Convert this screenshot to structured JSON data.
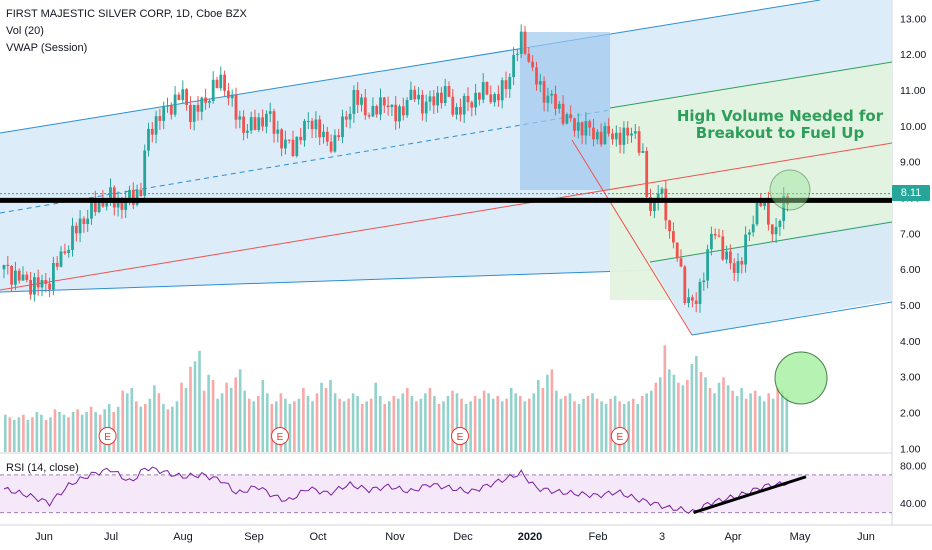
{
  "legend": {
    "symbol": "FIRST MAJESTIC SILVER CORP, 1D, Cboe BZX",
    "vol": "Vol (20)",
    "vwap": "VWAP (Session)",
    "rsi": "RSI (14, close)"
  },
  "annotation": {
    "line1": "High Volume Needed for",
    "line2": "Breakout to Fuel Up"
  },
  "last_price": "8.11",
  "colors": {
    "up": "#26a69a",
    "down": "#ef5350",
    "channel_fill": "#d6e9f8",
    "channel_line": "#2b8fd3",
    "green_fill": "#e3f3df",
    "annotation": "#2e9e5a",
    "rsi_line": "#7b1fa2",
    "rsi_band": "#f3e5f8",
    "earnings": "#e53935"
  },
  "earnings_marker": "E",
  "chart_data": {
    "type": "candlestick",
    "price_axis": {
      "ticks": [
        "13.00",
        "12.00",
        "11.00",
        "10.00",
        "9.00",
        "8.00",
        "7.00",
        "6.00",
        "5.00",
        "4.00",
        "3.00",
        "2.00",
        "1.00"
      ],
      "values": [
        13,
        12,
        11,
        10,
        9,
        8,
        7,
        6,
        5,
        4,
        3,
        2,
        1
      ],
      "range": [
        0.9,
        13.4
      ]
    },
    "time_axis": {
      "labels": [
        "Jun",
        "Jul",
        "Aug",
        "Sep",
        "Oct",
        "Nov",
        "Dec",
        "2020",
        "Feb",
        "3",
        "Apr",
        "May",
        "Jun"
      ]
    },
    "rsi_axis": {
      "ticks": [
        "80.00",
        "40.00"
      ],
      "values": [
        80,
        40
      ],
      "range": [
        20,
        90
      ]
    },
    "price_path": [
      [
        0,
        6.0
      ],
      [
        5,
        5.8
      ],
      [
        10,
        5.6
      ],
      [
        15,
        5.55
      ],
      [
        18,
        5.7
      ],
      [
        22,
        6.3
      ],
      [
        26,
        6.8
      ],
      [
        30,
        7.3
      ],
      [
        34,
        7.6
      ],
      [
        38,
        7.9
      ],
      [
        42,
        8.0
      ],
      [
        46,
        7.8
      ],
      [
        50,
        8.0
      ],
      [
        54,
        8.2
      ],
      [
        56,
        9.5
      ],
      [
        58,
        10.0
      ],
      [
        62,
        10.3
      ],
      [
        66,
        10.6
      ],
      [
        70,
        10.9
      ],
      [
        74,
        10.3
      ],
      [
        78,
        10.6
      ],
      [
        82,
        11.0
      ],
      [
        86,
        11.3
      ],
      [
        88,
        11.0
      ],
      [
        92,
        10.2
      ],
      [
        96,
        9.9
      ],
      [
        100,
        10.1
      ],
      [
        104,
        10.3
      ],
      [
        108,
        9.8
      ],
      [
        110,
        9.5
      ],
      [
        114,
        9.4
      ],
      [
        118,
        9.9
      ],
      [
        122,
        10.2
      ],
      [
        126,
        9.6
      ],
      [
        130,
        9.5
      ],
      [
        134,
        10.1
      ],
      [
        138,
        10.8
      ],
      [
        142,
        10.5
      ],
      [
        146,
        10.3
      ],
      [
        150,
        10.8
      ],
      [
        154,
        10.2
      ],
      [
        158,
        10.6
      ],
      [
        162,
        10.9
      ],
      [
        166,
        10.5
      ],
      [
        170,
        10.8
      ],
      [
        174,
        10.9
      ],
      [
        178,
        10.4
      ],
      [
        182,
        10.6
      ],
      [
        186,
        10.8
      ],
      [
        190,
        11.0
      ],
      [
        194,
        10.7
      ],
      [
        198,
        11.2
      ],
      [
        202,
        12.0
      ],
      [
        204,
        12.4
      ],
      [
        206,
        12.2
      ],
      [
        208,
        11.5
      ],
      [
        212,
        11.0
      ],
      [
        216,
        10.7
      ],
      [
        220,
        10.4
      ],
      [
        224,
        10.0
      ],
      [
        228,
        10.0
      ],
      [
        232,
        9.8
      ],
      [
        236,
        9.7
      ],
      [
        240,
        9.8
      ],
      [
        244,
        9.6
      ],
      [
        248,
        10.0
      ],
      [
        252,
        9.0
      ],
      [
        254,
        7.9
      ],
      [
        256,
        7.6
      ],
      [
        258,
        8.2
      ],
      [
        260,
        7.9
      ],
      [
        262,
        7.3
      ],
      [
        264,
        6.6
      ],
      [
        266,
        6.3
      ],
      [
        268,
        5.4
      ],
      [
        270,
        5.2
      ],
      [
        272,
        4.9
      ],
      [
        274,
        5.3
      ],
      [
        276,
        6.0
      ],
      [
        278,
        6.6
      ],
      [
        280,
        7.1
      ],
      [
        282,
        6.8
      ],
      [
        284,
        6.5
      ],
      [
        286,
        6.1
      ],
      [
        288,
        6.0
      ],
      [
        290,
        6.2
      ],
      [
        292,
        6.6
      ],
      [
        294,
        7.0
      ],
      [
        296,
        7.5
      ],
      [
        298,
        8.1
      ],
      [
        300,
        7.6
      ],
      [
        302,
        7.2
      ],
      [
        304,
        7.0
      ],
      [
        306,
        7.5
      ],
      [
        308,
        7.8
      ],
      [
        310,
        8.1
      ]
    ],
    "volume": [
      1.4,
      1.3,
      1.2,
      1.3,
      1.4,
      1.2,
      1.3,
      1.5,
      1.4,
      1.2,
      1.3,
      1.6,
      1.5,
      1.4,
      1.3,
      1.5,
      1.6,
      1.4,
      1.5,
      1.7,
      1.5,
      1.4,
      1.6,
      1.8,
      1.5,
      1.7,
      2.3,
      2.2,
      2.4,
      1.9,
      1.7,
      1.8,
      2.0,
      2.5,
      2.2,
      1.8,
      1.6,
      1.7,
      1.9,
      2.6,
      2.4,
      3.2,
      3.4,
      3.8,
      2.3,
      2.9,
      2.7,
      2.0,
      2.2,
      2.6,
      2.4,
      2.8,
      3.1,
      2.3,
      2.0,
      1.9,
      2.1,
      2.7,
      2.2,
      1.8,
      1.9,
      2.2,
      2.0,
      1.8,
      1.9,
      2.0,
      2.4,
      2.1,
      1.9,
      2.2,
      2.6,
      2.4,
      2.7,
      2.2,
      2.0,
      1.9,
      2.0,
      2.2,
      2.1,
      1.8,
      1.9,
      2.0,
      2.6,
      2.1,
      1.8,
      1.9,
      2.1,
      2.0,
      2.2,
      2.4,
      2.1,
      1.9,
      2.0,
      2.2,
      2.4,
      2.1,
      1.8,
      1.9,
      2.1,
      2.3,
      2.2,
      2.0,
      1.8,
      1.9,
      2.1,
      2.0,
      2.3,
      2.2,
      2.0,
      2.1,
      1.9,
      2.0,
      2.4,
      2.2,
      2.1,
      1.9,
      2.0,
      2.2,
      2.7,
      2.4,
      2.9,
      3.1,
      2.3,
      2.0,
      2.1,
      2.2,
      1.9,
      1.8,
      2.0,
      2.1,
      2.2,
      2.0,
      1.9,
      1.8,
      2.0,
      2.1,
      1.9,
      1.8,
      1.9,
      2.0,
      1.8,
      2.1,
      2.2,
      2.3,
      2.6,
      2.8,
      4.0,
      3.1,
      2.9,
      2.6,
      2.5,
      2.7,
      3.3,
      3.6,
      3.0,
      2.8,
      2.4,
      2.2,
      2.6,
      2.8,
      2.5,
      2.3,
      2.1,
      2.4,
      2.0,
      2.2,
      2.3,
      2.1,
      1.9,
      2.2,
      2.0,
      2.4,
      2.3,
      2.1
    ],
    "rsi_path": [
      [
        0,
        55
      ],
      [
        10,
        48
      ],
      [
        18,
        40
      ],
      [
        26,
        60
      ],
      [
        34,
        70
      ],
      [
        42,
        76
      ],
      [
        50,
        62
      ],
      [
        56,
        78
      ],
      [
        62,
        74
      ],
      [
        70,
        68
      ],
      [
        78,
        70
      ],
      [
        86,
        64
      ],
      [
        92,
        50
      ],
      [
        100,
        58
      ],
      [
        106,
        48
      ],
      [
        112,
        42
      ],
      [
        120,
        56
      ],
      [
        128,
        50
      ],
      [
        136,
        60
      ],
      [
        144,
        54
      ],
      [
        152,
        58
      ],
      [
        160,
        52
      ],
      [
        168,
        60
      ],
      [
        176,
        56
      ],
      [
        184,
        52
      ],
      [
        190,
        58
      ],
      [
        198,
        66
      ],
      [
        204,
        72
      ],
      [
        210,
        56
      ],
      [
        218,
        52
      ],
      [
        226,
        50
      ],
      [
        234,
        48
      ],
      [
        242,
        52
      ],
      [
        250,
        44
      ],
      [
        256,
        40
      ],
      [
        262,
        35
      ],
      [
        268,
        33
      ],
      [
        272,
        30
      ],
      [
        278,
        40
      ],
      [
        284,
        44
      ],
      [
        290,
        48
      ],
      [
        296,
        54
      ],
      [
        300,
        58
      ],
      [
        306,
        60
      ],
      [
        310,
        62
      ]
    ]
  }
}
